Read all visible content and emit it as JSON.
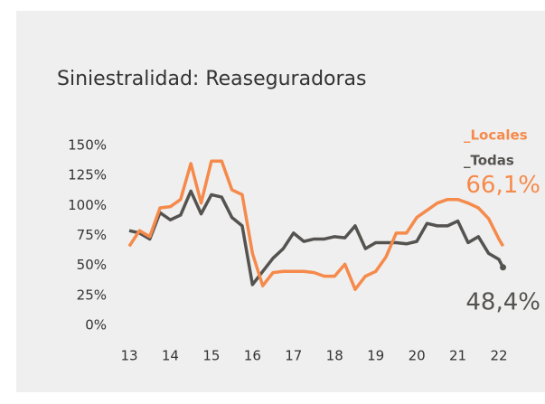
{
  "chart_data": {
    "type": "line",
    "title": "Siniestralidad: Reaseguradoras",
    "x": [
      13.0,
      13.25,
      13.5,
      13.75,
      14.0,
      14.25,
      14.5,
      14.75,
      15.0,
      15.25,
      15.5,
      15.75,
      16.0,
      16.25,
      16.5,
      16.75,
      17.0,
      17.25,
      17.5,
      17.75,
      18.0,
      18.25,
      18.5,
      18.75,
      19.0,
      19.25,
      19.5,
      19.75,
      20.0,
      20.25,
      20.5,
      20.75,
      21.0,
      21.25,
      21.5,
      21.75,
      22.0,
      22.1
    ],
    "series": [
      {
        "name": "_Locales",
        "color": "#f58a4b",
        "values": [
          66,
          79,
          74,
          98,
          99,
          105,
          135,
          102,
          137,
          137,
          113,
          109,
          60,
          33,
          44,
          45,
          45,
          45,
          44,
          41,
          41,
          51,
          30,
          41,
          45,
          57,
          77,
          77,
          90,
          96,
          102,
          105,
          105,
          102,
          98,
          89,
          72,
          66.1
        ],
        "value_labels": [
          null,
          null,
          null,
          null,
          null,
          null,
          null,
          null,
          null,
          null,
          null,
          null,
          null,
          null,
          null,
          null,
          null,
          null,
          null,
          null,
          null,
          null,
          null,
          null,
          null,
          null,
          null,
          null,
          null,
          null,
          null,
          null,
          null,
          null,
          null,
          null,
          null,
          "66,1%"
        ]
      },
      {
        "name": "_Todas",
        "color": "#555350",
        "values": [
          79,
          77,
          72,
          94,
          88,
          92,
          112,
          93,
          109,
          107,
          90,
          83,
          34,
          45,
          56,
          64,
          77,
          70,
          72,
          72,
          74,
          73,
          83,
          64,
          69,
          69,
          69,
          68,
          70,
          85,
          83,
          83,
          87,
          69,
          74,
          60,
          55,
          48.4
        ],
        "value_labels": [
          null,
          null,
          null,
          null,
          null,
          null,
          null,
          null,
          null,
          null,
          null,
          null,
          null,
          null,
          null,
          null,
          null,
          null,
          null,
          null,
          null,
          null,
          null,
          null,
          null,
          null,
          null,
          null,
          null,
          null,
          null,
          null,
          null,
          null,
          null,
          null,
          null,
          "48,4%"
        ]
      }
    ],
    "xlim": [
      13,
      22
    ],
    "xticks": [
      13,
      14,
      15,
      16,
      17,
      18,
      19,
      20,
      21,
      22
    ],
    "ylim": [
      0,
      150
    ],
    "yticks": [
      {
        "value": 0,
        "label": "0%"
      },
      {
        "value": 25,
        "label": "25%"
      },
      {
        "value": 50,
        "label": "50%"
      },
      {
        "value": 75,
        "label": "75%"
      },
      {
        "value": 100,
        "label": "100%"
      },
      {
        "value": 125,
        "label": "125%"
      },
      {
        "value": 150,
        "label": "150%"
      }
    ],
    "grid": false,
    "legend": "top-right"
  }
}
